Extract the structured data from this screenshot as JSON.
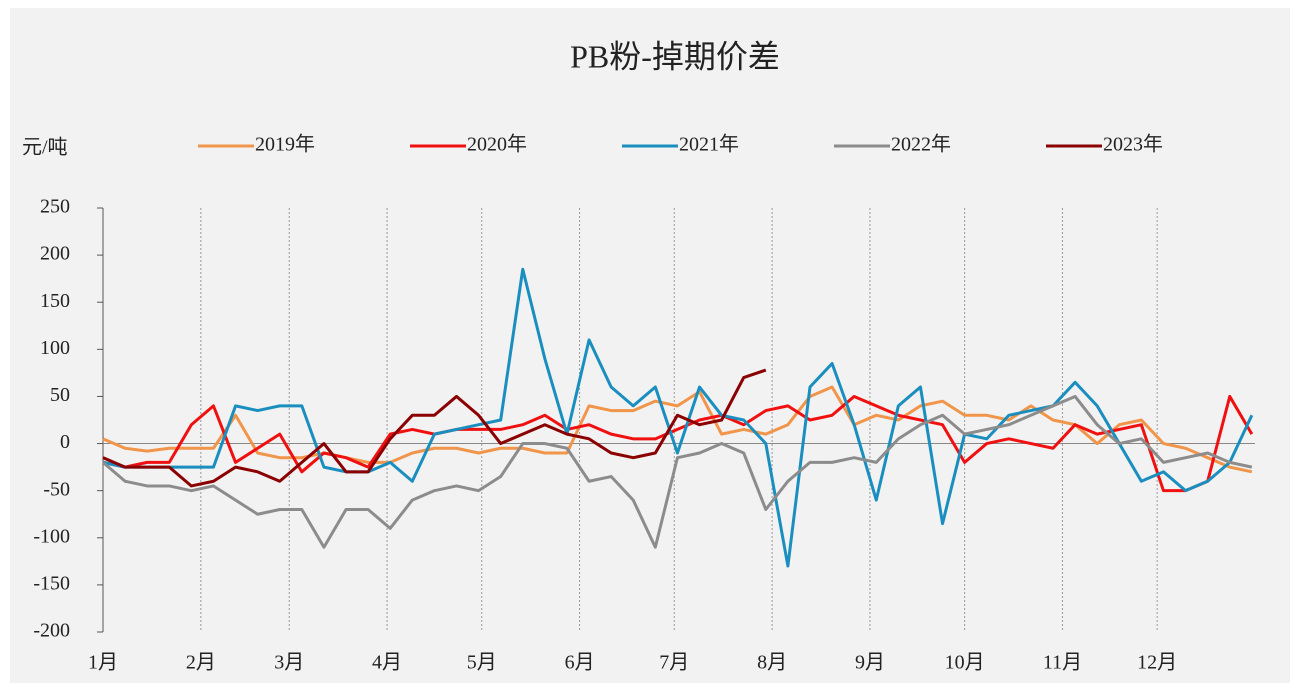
{
  "chart_data": {
    "type": "line",
    "title": "PB粉-掉期价差",
    "y_label": "元/吨",
    "x": [
      1,
      8,
      15,
      22,
      29,
      36,
      43,
      50,
      57,
      64,
      71,
      78,
      85,
      92,
      99,
      106,
      113,
      120,
      127,
      134,
      141,
      148,
      155,
      162,
      169,
      176,
      183,
      190,
      197,
      204,
      211,
      218,
      225,
      232,
      239,
      246,
      253,
      260,
      267,
      274,
      281,
      288,
      295,
      302,
      309,
      316,
      323,
      330,
      337,
      344,
      351,
      358,
      365
    ],
    "xlim": [
      1,
      366
    ],
    "xticks": [
      {
        "value": 1,
        "label": "1月"
      },
      {
        "value": 32,
        "label": "2月"
      },
      {
        "value": 60,
        "label": "3月"
      },
      {
        "value": 91,
        "label": "4月"
      },
      {
        "value": 121,
        "label": "5月"
      },
      {
        "value": 152,
        "label": "6月"
      },
      {
        "value": 182,
        "label": "7月"
      },
      {
        "value": 213,
        "label": "8月"
      },
      {
        "value": 244,
        "label": "9月"
      },
      {
        "value": 274,
        "label": "10月"
      },
      {
        "value": 305,
        "label": "11月"
      },
      {
        "value": 335,
        "label": "12月"
      }
    ],
    "ylim": [
      -200,
      250
    ],
    "yticks": [
      -200,
      -150,
      -100,
      -50,
      0,
      50,
      100,
      150,
      200,
      250
    ],
    "grid": true,
    "series": [
      {
        "name": "2019年",
        "color": "#f0954a",
        "values": [
          5,
          -5,
          -8,
          -5,
          -5,
          -5,
          30,
          -10,
          -15,
          -15,
          -10,
          -15,
          -20,
          -20,
          -10,
          -5,
          -5,
          -10,
          -5,
          -5,
          -10,
          -10,
          40,
          35,
          35,
          45,
          40,
          55,
          10,
          15,
          10,
          20,
          50,
          60,
          20,
          30,
          25,
          40,
          45,
          30,
          30,
          25,
          40,
          25,
          20,
          0,
          20,
          25,
          0,
          -5,
          -15,
          -25,
          -30
        ]
      },
      {
        "name": "2020年",
        "color": "#f01010",
        "values": [
          -20,
          -25,
          -20,
          -20,
          20,
          40,
          -20,
          -5,
          10,
          -30,
          -10,
          -15,
          -25,
          10,
          15,
          10,
          15,
          15,
          15,
          20,
          30,
          15,
          20,
          10,
          5,
          5,
          15,
          25,
          30,
          20,
          35,
          40,
          25,
          30,
          50,
          40,
          30,
          25,
          20,
          -20,
          0,
          5,
          0,
          -5,
          20,
          10,
          15,
          20,
          -50,
          -50,
          -40,
          50,
          10
        ]
      },
      {
        "name": "2021年",
        "color": "#1a8fbf",
        "values": [
          -20,
          -25,
          -25,
          -25,
          -25,
          -25,
          40,
          35,
          40,
          40,
          -25,
          -30,
          -30,
          -20,
          -40,
          10,
          15,
          20,
          25,
          185,
          90,
          10,
          110,
          60,
          40,
          60,
          -10,
          60,
          30,
          25,
          0,
          -130,
          60,
          85,
          20,
          -60,
          40,
          60,
          -85,
          10,
          5,
          30,
          35,
          40,
          65,
          40,
          0,
          -40,
          -30,
          -50,
          -40,
          -20,
          30
        ]
      },
      {
        "name": "2022年",
        "color": "#8c8c8c",
        "values": [
          -20,
          -40,
          -45,
          -45,
          -50,
          -45,
          -60,
          -75,
          -70,
          -70,
          -110,
          -70,
          -70,
          -90,
          -60,
          -50,
          -45,
          -50,
          -35,
          0,
          0,
          -5,
          -40,
          -35,
          -60,
          -110,
          -15,
          -10,
          0,
          -10,
          -70,
          -40,
          -20,
          -20,
          -15,
          -20,
          5,
          20,
          30,
          10,
          15,
          20,
          30,
          40,
          50,
          20,
          0,
          5,
          -20,
          -15,
          -10,
          -20,
          -25
        ]
      },
      {
        "name": "2023年",
        "color": "#8b0000",
        "values": [
          -15,
          -25,
          -25,
          -25,
          -45,
          -40,
          -25,
          -30,
          -40,
          -20,
          0,
          -30,
          -30,
          5,
          30,
          30,
          50,
          30,
          0,
          10,
          20,
          10,
          5,
          -10,
          -15,
          -10,
          30,
          20,
          25,
          70,
          78,
          null,
          null,
          null,
          null,
          null,
          null,
          null,
          null,
          null,
          null,
          null,
          null,
          null,
          null,
          null,
          null,
          null,
          null,
          null,
          null,
          null,
          null
        ]
      }
    ]
  }
}
